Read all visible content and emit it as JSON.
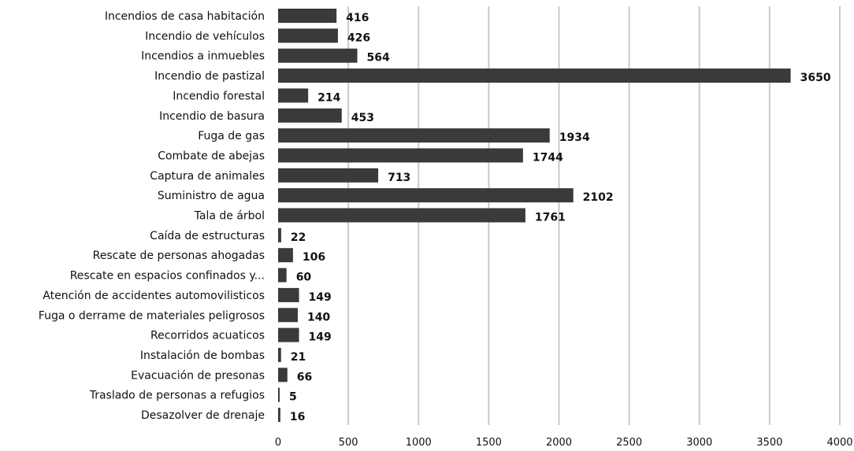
{
  "chart_data": {
    "type": "bar",
    "orientation": "horizontal",
    "categories": [
      "Incendios de casa habitación",
      "Incendio de vehículos",
      "Incendios a inmuebles",
      "Incendio de pastizal",
      "Incendio forestal",
      "Incendio de basura",
      "Fuga de gas",
      "Combate de abejas",
      "Captura de animales",
      "Suministro de agua",
      "Tala de árbol",
      "Caída de estructuras",
      "Rescate de personas ahogadas",
      "Rescate en espacios confinados y...",
      "Atención de accidentes automovilisticos",
      "Fuga o derrame de materiales peligrosos",
      "Recorridos acuaticos",
      "Instalación de bombas",
      "Evacuación de presonas",
      "Traslado de personas a refugios",
      "Desazolver de drenaje"
    ],
    "values": [
      416,
      426,
      564,
      3650,
      214,
      453,
      1934,
      1744,
      713,
      2102,
      1761,
      22,
      106,
      60,
      149,
      140,
      149,
      21,
      66,
      5,
      16
    ],
    "data_labels": [
      "416",
      "426",
      "564",
      "3650",
      "214",
      "453",
      "1934",
      "1744",
      "713",
      "2102",
      "1761",
      "22",
      "106",
      "60",
      "149",
      "140",
      "149",
      "21",
      "66",
      "5",
      "16"
    ],
    "xlim": [
      0,
      4000
    ],
    "x_ticks": [
      "0",
      "500",
      "1000",
      "1500",
      "2000",
      "2500",
      "3000",
      "3500",
      "4000"
    ],
    "grid": true,
    "bar_color": "#3a3a3a",
    "grid_color": "#c9c9c9"
  }
}
